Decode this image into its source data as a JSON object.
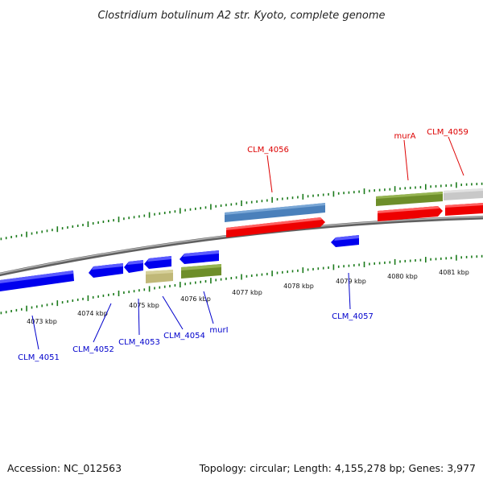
{
  "header": {
    "title": "Clostridium botulinum A2 str. Kyoto, complete genome"
  },
  "footer": {
    "accession": "Accession: NC_012563",
    "topology": "Topology: circular; Length: 4,155,278 bp; Genes: 3,977"
  },
  "axis": {
    "ticks": [
      "4073 kbp",
      "4074 kbp",
      "4075 kbp",
      "4076 kbp",
      "4077 kbp",
      "4078 kbp",
      "4079 kbp",
      "4080 kbp",
      "4081 kbp"
    ]
  },
  "genes": [
    {
      "id": "CLM_4051",
      "label": "CLM_4051",
      "color": "#0000ee",
      "labelColor": "#0000cc",
      "strand": "minus"
    },
    {
      "id": "CLM_4052",
      "label": "CLM_4052",
      "color": "#0000ee",
      "labelColor": "#0000cc",
      "strand": "minus"
    },
    {
      "id": "CLM_4053",
      "label": "CLM_4053",
      "color": "#0000ee",
      "labelColor": "#0000cc",
      "strand": "minus"
    },
    {
      "id": "CLM_4054",
      "label": "CLM_4054",
      "color": "#0000ee",
      "labelColor": "#0000cc",
      "strand": "minus"
    },
    {
      "id": "murI",
      "label": "murI",
      "color": "#0000ee",
      "labelColor": "#0000cc",
      "strand": "minus"
    },
    {
      "id": "CLM_4056",
      "label": "CLM_4056",
      "color": "#ee0000",
      "labelColor": "#dd0000",
      "strand": "plus"
    },
    {
      "id": "CLM_4057",
      "label": "CLM_4057",
      "color": "#0000ee",
      "labelColor": "#0000cc",
      "strand": "minus"
    },
    {
      "id": "murA",
      "label": "murA",
      "color": "#ee0000",
      "labelColor": "#dd0000",
      "strand": "plus"
    },
    {
      "id": "CLM_4059",
      "label": "CLM_4059",
      "color": "#ee0000",
      "labelColor": "#dd0000",
      "strand": "plus"
    }
  ],
  "colors": {
    "backbone": "#888888",
    "tick": "#1a7a1a",
    "cds_plus_feature": "#4a80bb",
    "cds_minus_feature": "#c0b878",
    "rrna_feature": "#6e8e2a",
    "gray_feature": "#c8c8c8"
  }
}
